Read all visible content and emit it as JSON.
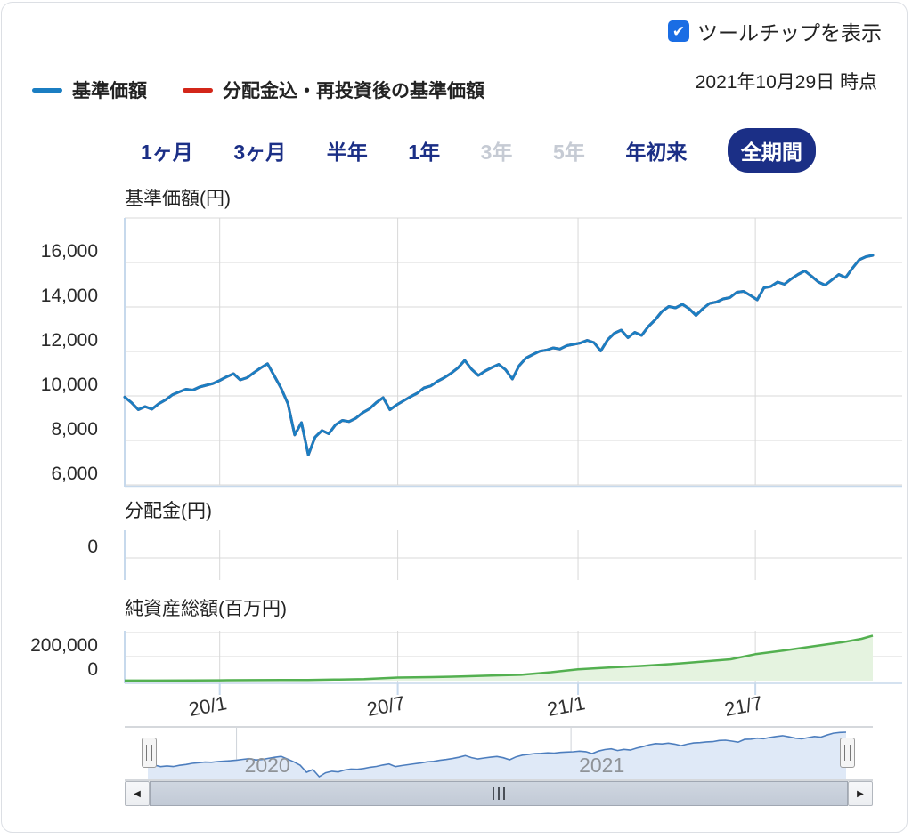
{
  "header": {
    "tooltip_toggle_label": "ツールチップを表示",
    "tooltip_checked": true,
    "checkmark_glyph": "✔",
    "as_of_date": "2021年10月29日 時点"
  },
  "legend": {
    "items": [
      {
        "label": "基準価額",
        "color": "#1b7ec2"
      },
      {
        "label": "分配金込・再投資後の基準価額",
        "color": "#d32619"
      }
    ]
  },
  "period_tabs": {
    "items": [
      {
        "label": "1ヶ月",
        "state": "enabled"
      },
      {
        "label": "3ヶ月",
        "state": "enabled"
      },
      {
        "label": "半年",
        "state": "enabled"
      },
      {
        "label": "1年",
        "state": "enabled"
      },
      {
        "label": "3年",
        "state": "disabled"
      },
      {
        "label": "5年",
        "state": "disabled"
      },
      {
        "label": "年初来",
        "state": "enabled"
      },
      {
        "label": "全期間",
        "state": "selected"
      }
    ],
    "selected_color": "#1b2f86"
  },
  "scrollbar": {
    "left_arrow": "◀",
    "right_arrow": "▶"
  },
  "chart_data": {
    "type": "line",
    "x_axis": {
      "range_start": "2019/09",
      "range_end": "2021/10/29",
      "ticks": [
        {
          "label": "20/1",
          "f": 0.127
        },
        {
          "label": "20/7",
          "f": 0.365
        },
        {
          "label": "21/1",
          "f": 0.606
        },
        {
          "label": "21/7",
          "f": 0.843
        }
      ]
    },
    "panes": [
      {
        "name": "nav",
        "title": "基準価額(円)",
        "ylim": [
          6000,
          18000
        ],
        "y_ticks": [
          {
            "label": "16,000",
            "v": 16000
          },
          {
            "label": "14,000",
            "v": 14000
          },
          {
            "label": "12,000",
            "v": 12000
          },
          {
            "label": "10,000",
            "v": 10000
          },
          {
            "label": "8,000",
            "v": 8000
          },
          {
            "label": "6,000",
            "v": 6000
          }
        ],
        "series": [
          {
            "name": "分配金込・再投資後の基準価額",
            "color": "#d32619",
            "values": "same_as_first",
            "note": "no distributions paid, identical to 基準価額 so hidden beneath the blue line"
          },
          {
            "name": "基準価額",
            "color": "#1b7ec2",
            "cadence": "weekly 2019/09/26 - 2021/10/29",
            "values": [
              9950,
              9700,
              9380,
              9520,
              9400,
              9650,
              9820,
              10050,
              10180,
              10300,
              10260,
              10400,
              10480,
              10560,
              10700,
              10860,
              11000,
              10720,
              10820,
              11050,
              11260,
              11450,
              10900,
              10350,
              9650,
              8250,
              8800,
              7350,
              8150,
              8450,
              8300,
              8700,
              8900,
              8850,
              9000,
              9250,
              9420,
              9700,
              9920,
              9380,
              9600,
              9780,
              9960,
              10120,
              10360,
              10450,
              10660,
              10820,
              11020,
              11260,
              11600,
              11200,
              10920,
              11120,
              11280,
              11420,
              11180,
              10760,
              11360,
              11700,
              11860,
              12010,
              12060,
              12160,
              12110,
              12260,
              12320,
              12380,
              12500,
              12400,
              12020,
              12520,
              12820,
              12960,
              12620,
              12860,
              12720,
              13120,
              13420,
              13800,
              14020,
              13960,
              14120,
              13920,
              13620,
              13920,
              14160,
              14220,
              14360,
              14420,
              14660,
              14700,
              14520,
              14320,
              14860,
              14920,
              15120,
              15020,
              15260,
              15460,
              15620,
              15380,
              15120,
              14980,
              15220,
              15460,
              15320,
              15740,
              16120,
              16260,
              16320
            ]
          }
        ]
      },
      {
        "name": "dividend",
        "title": "分配金(円)",
        "y_ticks": [
          {
            "label": "0",
            "v": 0
          }
        ],
        "series": [
          {
            "name": "分配金",
            "constant_value": 0
          }
        ]
      },
      {
        "name": "aum",
        "title": "純資産総額(百万円)",
        "y_ticks": [
          {
            "label": "200,000",
            "v": 200000
          },
          {
            "label": "0",
            "v": 0
          }
        ],
        "series": [
          {
            "name": "純資産総額",
            "color": "#53b050",
            "fill": "#e5f3e0",
            "points": [
              [
                0,
                600
              ],
              [
                0.04,
                900
              ],
              [
                0.09,
                1500
              ],
              [
                0.127,
                2600
              ],
              [
                0.17,
                4100
              ],
              [
                0.21,
                5400
              ],
              [
                0.245,
                6200
              ],
              [
                0.28,
                8600
              ],
              [
                0.32,
                12500
              ],
              [
                0.365,
                26000
              ],
              [
                0.41,
                30000
              ],
              [
                0.45,
                35000
              ],
              [
                0.49,
                42000
              ],
              [
                0.53,
                49000
              ],
              [
                0.57,
                70000
              ],
              [
                0.606,
                95000
              ],
              [
                0.65,
                110000
              ],
              [
                0.69,
                122000
              ],
              [
                0.73,
                138000
              ],
              [
                0.77,
                158000
              ],
              [
                0.81,
                178000
              ],
              [
                0.843,
                220000
              ],
              [
                0.88,
                250000
              ],
              [
                0.92,
                285000
              ],
              [
                0.96,
                320000
              ],
              [
                0.985,
                348000
              ],
              [
                1,
                375000
              ]
            ]
          }
        ]
      }
    ],
    "navigator": {
      "line_color": "#4d7ebe",
      "fill_color": "#dfe9f7",
      "outline_color": "#abb1b8",
      "year_labels": [
        {
          "label": "2020",
          "f": 0.127
        },
        {
          "label": "2021",
          "f": 0.606
        }
      ]
    },
    "grid_color": "#d8d8d8",
    "axis_color": "#c7d9ec"
  }
}
